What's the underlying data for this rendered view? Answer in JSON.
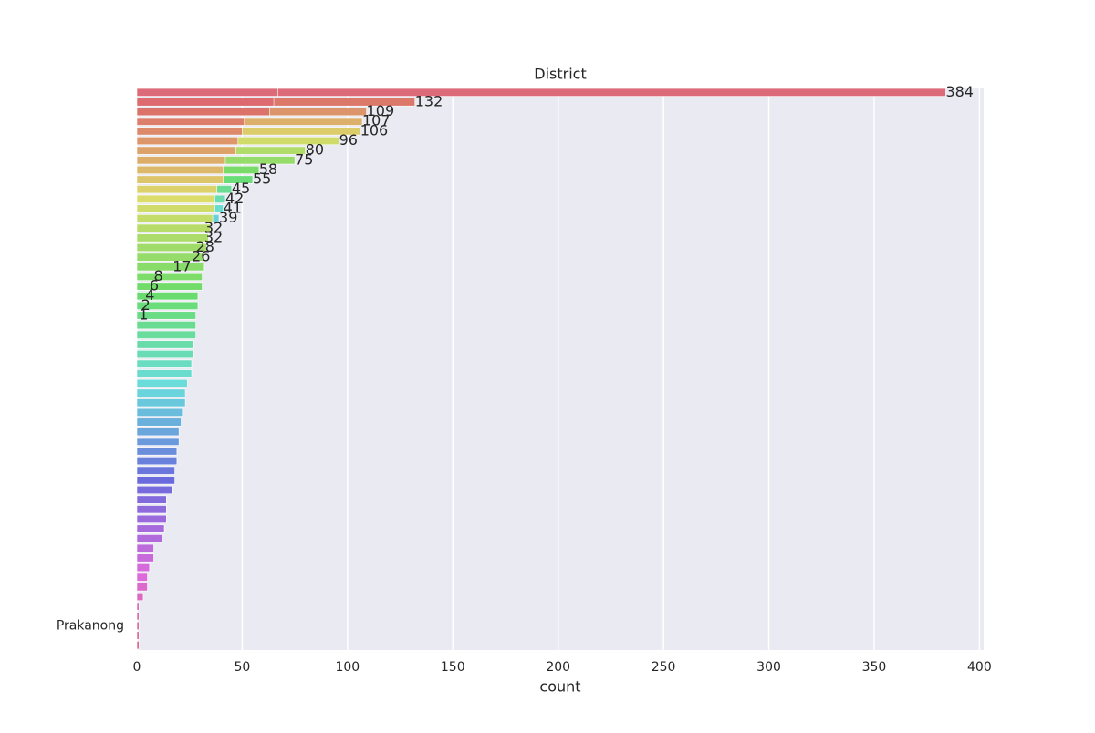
{
  "chart_data": {
    "type": "barh",
    "title": "District",
    "x_label": "count",
    "categories": [
      null,
      null,
      null,
      null,
      null,
      null,
      null,
      null,
      null,
      null,
      null,
      null,
      null,
      null,
      null,
      null,
      null,
      null,
      null,
      null,
      null,
      null,
      null,
      null,
      null,
      null,
      null,
      null,
      null,
      null,
      null,
      null,
      null,
      null,
      null,
      null,
      null,
      null,
      null,
      null,
      null,
      null,
      null,
      null,
      null,
      null,
      null,
      null,
      null,
      null,
      null,
      null,
      null,
      null,
      null,
      "Prakanong",
      null,
      null
    ],
    "series": [
      {
        "values": [
          67,
          65,
          63,
          51,
          50,
          48,
          47,
          42,
          41,
          41,
          38,
          37,
          37,
          36,
          35,
          34,
          33,
          32,
          32,
          31,
          31,
          29,
          29,
          28,
          28,
          28,
          27,
          27,
          26,
          26,
          24,
          23,
          23,
          22,
          21,
          20,
          20,
          19,
          19,
          18,
          18,
          17,
          14,
          14,
          14,
          13,
          12,
          8,
          8,
          6,
          5,
          5,
          3,
          1,
          1,
          1,
          1,
          1
        ],
        "palette": "husl",
        "labels": false
      },
      {
        "values": [
          384,
          132,
          109,
          107,
          106,
          96,
          80,
          75,
          58,
          55,
          45,
          42,
          41,
          39,
          32,
          32,
          28,
          26,
          17,
          8,
          6,
          4,
          2,
          1,
          null,
          null,
          null,
          null,
          null,
          null,
          null,
          null,
          null,
          null,
          null,
          null,
          null,
          null,
          null,
          null,
          null,
          null,
          null,
          null,
          null,
          null,
          null,
          null,
          null,
          null,
          null,
          null,
          null,
          null,
          null,
          null,
          null,
          null
        ],
        "palette": "husl",
        "labels": true
      }
    ],
    "xlim": [
      0,
      402
    ],
    "xticks": [
      0,
      50,
      100,
      150,
      200,
      250,
      300,
      350,
      400
    ],
    "grid": true,
    "background": "#eaeaf2"
  }
}
